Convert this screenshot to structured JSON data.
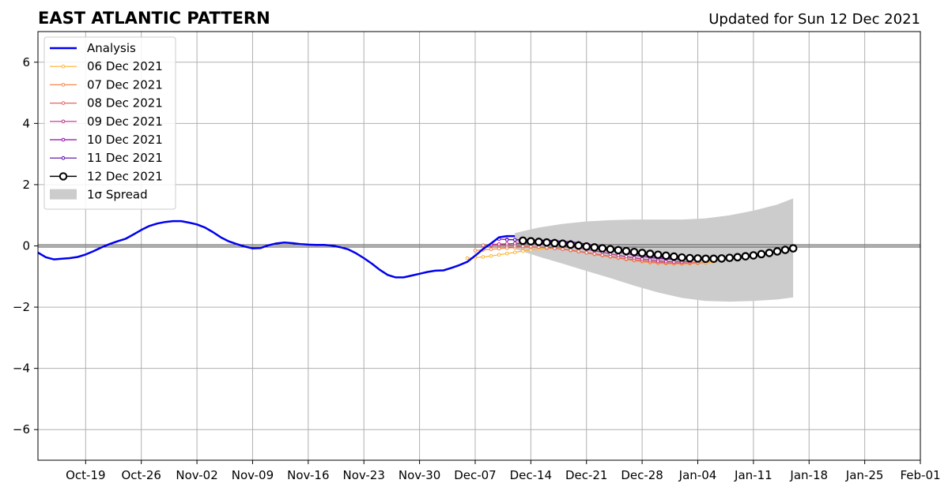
{
  "chart_data": {
    "type": "line",
    "title": "EAST ATLANTIC PATTERN",
    "subtitle": "Updated for Sun 12 Dec 2021",
    "xlabel": "",
    "ylabel": "",
    "x_range": [
      "2021-10-13",
      "2022-02-01"
    ],
    "ylim": [
      -7,
      7
    ],
    "yticks": [
      -6,
      -4,
      -2,
      0,
      2,
      4,
      6
    ],
    "ytick_labels": [
      "−6",
      "−4",
      "−2",
      "0",
      "2",
      "4",
      "6"
    ],
    "xticks": [
      "2021-10-19",
      "2021-10-26",
      "2021-11-02",
      "2021-11-09",
      "2021-11-16",
      "2021-11-23",
      "2021-11-30",
      "2021-12-07",
      "2021-12-14",
      "2021-12-21",
      "2021-12-28",
      "2022-01-04",
      "2022-01-11",
      "2022-01-18",
      "2022-01-25",
      "2022-02-01"
    ],
    "xtick_labels": [
      "Oct-19",
      "Oct-26",
      "Nov-02",
      "Nov-09",
      "Nov-16",
      "Nov-23",
      "Nov-30",
      "Dec-07",
      "Dec-14",
      "Dec-21",
      "Dec-28",
      "Jan-04",
      "Jan-11",
      "Jan-18",
      "Jan-25",
      "Feb-01"
    ],
    "grid": true,
    "legend_position": "upper-left",
    "analysis": {
      "name": "Analysis",
      "color": "#0000ee",
      "x": [
        "2021-10-13",
        "2021-10-14",
        "2021-10-15",
        "2021-10-16",
        "2021-10-17",
        "2021-10-18",
        "2021-10-19",
        "2021-10-20",
        "2021-10-21",
        "2021-10-22",
        "2021-10-23",
        "2021-10-24",
        "2021-10-25",
        "2021-10-26",
        "2021-10-27",
        "2021-10-28",
        "2021-10-29",
        "2021-10-30",
        "2021-10-31",
        "2021-11-01",
        "2021-11-02",
        "2021-11-03",
        "2021-11-04",
        "2021-11-05",
        "2021-11-06",
        "2021-11-07",
        "2021-11-08",
        "2021-11-09",
        "2021-11-10",
        "2021-11-11",
        "2021-11-12",
        "2021-11-13",
        "2021-11-14",
        "2021-11-15",
        "2021-11-16",
        "2021-11-17",
        "2021-11-18",
        "2021-11-19",
        "2021-11-20",
        "2021-11-21",
        "2021-11-22",
        "2021-11-23",
        "2021-11-24",
        "2021-11-25",
        "2021-11-26",
        "2021-11-27",
        "2021-11-28",
        "2021-11-29",
        "2021-11-30",
        "2021-12-01",
        "2021-12-02",
        "2021-12-03",
        "2021-12-04",
        "2021-12-05",
        "2021-12-06",
        "2021-12-07",
        "2021-12-08",
        "2021-12-09",
        "2021-12-10",
        "2021-12-11",
        "2021-12-12"
      ],
      "y": [
        -0.22,
        -0.37,
        -0.44,
        -0.42,
        -0.4,
        -0.36,
        -0.28,
        -0.17,
        -0.05,
        0.06,
        0.15,
        0.23,
        0.37,
        0.52,
        0.65,
        0.73,
        0.78,
        0.81,
        0.81,
        0.76,
        0.7,
        0.6,
        0.45,
        0.28,
        0.15,
        0.06,
        -0.02,
        -0.08,
        -0.07,
        0.02,
        0.08,
        0.11,
        0.09,
        0.06,
        0.04,
        0.03,
        0.03,
        0.01,
        -0.04,
        -0.11,
        -0.24,
        -0.4,
        -0.58,
        -0.78,
        -0.95,
        -1.03,
        -1.03,
        -0.97,
        -0.91,
        -0.85,
        -0.81,
        -0.8,
        -0.72,
        -0.63,
        -0.52,
        -0.32,
        -0.1,
        0.08,
        0.28,
        0.32,
        0.32
      ]
    },
    "spread": {
      "name": "1σ Spread",
      "color": "#cccccc",
      "x": [
        "2021-12-12",
        "2021-12-15",
        "2021-12-18",
        "2021-12-21",
        "2021-12-24",
        "2021-12-27",
        "2021-12-30",
        "2022-01-02",
        "2022-01-05",
        "2022-01-08",
        "2022-01-11",
        "2022-01-14",
        "2022-01-16"
      ],
      "upper": [
        0.42,
        0.6,
        0.72,
        0.8,
        0.84,
        0.86,
        0.86,
        0.86,
        0.9,
        1.0,
        1.15,
        1.35,
        1.55
      ],
      "lower": [
        -0.1,
        -0.35,
        -0.58,
        -0.82,
        -1.05,
        -1.3,
        -1.52,
        -1.7,
        -1.8,
        -1.82,
        -1.8,
        -1.75,
        -1.68
      ]
    },
    "series": [
      {
        "name": "06 Dec 2021",
        "color": "#fdb42f",
        "x": [
          "2021-12-06",
          "2021-12-07",
          "2021-12-08",
          "2021-12-09",
          "2021-12-10",
          "2021-12-11",
          "2021-12-12",
          "2021-12-13",
          "2021-12-14",
          "2021-12-15",
          "2021-12-16",
          "2021-12-17",
          "2021-12-18",
          "2021-12-19",
          "2021-12-20",
          "2021-12-21",
          "2021-12-22",
          "2021-12-23",
          "2021-12-24",
          "2021-12-25",
          "2021-12-26",
          "2021-12-27",
          "2021-12-28",
          "2021-12-29",
          "2021-12-30",
          "2021-12-31",
          "2022-01-01",
          "2022-01-02",
          "2022-01-03",
          "2022-01-04",
          "2022-01-05",
          "2022-01-06"
        ],
        "y": [
          -0.4,
          -0.38,
          -0.36,
          -0.33,
          -0.29,
          -0.25,
          -0.21,
          -0.17,
          -0.13,
          -0.1,
          -0.08,
          -0.08,
          -0.1,
          -0.13,
          -0.17,
          -0.21,
          -0.26,
          -0.3,
          -0.35,
          -0.4,
          -0.44,
          -0.48,
          -0.52,
          -0.55,
          -0.57,
          -0.58,
          -0.59,
          -0.59,
          -0.58,
          -0.57,
          -0.55,
          -0.53
        ]
      },
      {
        "name": "07 Dec 2021",
        "color": "#f48849",
        "x": [
          "2021-12-07",
          "2021-12-08",
          "2021-12-09",
          "2021-12-10",
          "2021-12-11",
          "2021-12-12",
          "2021-12-13",
          "2021-12-14",
          "2021-12-15",
          "2021-12-16",
          "2021-12-17",
          "2021-12-18",
          "2021-12-19",
          "2021-12-20",
          "2021-12-21",
          "2021-12-22",
          "2021-12-23",
          "2021-12-24",
          "2021-12-25",
          "2021-12-26",
          "2021-12-27",
          "2021-12-28",
          "2021-12-29",
          "2021-12-30",
          "2021-12-31",
          "2022-01-01",
          "2022-01-02",
          "2022-01-03",
          "2022-01-04",
          "2022-01-05"
        ],
        "y": [
          -0.15,
          -0.13,
          -0.11,
          -0.09,
          -0.07,
          -0.06,
          -0.05,
          -0.05,
          -0.05,
          -0.06,
          -0.08,
          -0.11,
          -0.15,
          -0.19,
          -0.23,
          -0.28,
          -0.32,
          -0.36,
          -0.4,
          -0.44,
          -0.48,
          -0.51,
          -0.54,
          -0.56,
          -0.57,
          -0.58,
          -0.58,
          -0.57,
          -0.56,
          -0.54
        ]
      },
      {
        "name": "08 Dec 2021",
        "color": "#e16462",
        "x": [
          "2021-12-08",
          "2021-12-09",
          "2021-12-10",
          "2021-12-11",
          "2021-12-12",
          "2021-12-13",
          "2021-12-14",
          "2021-12-15",
          "2021-12-16",
          "2021-12-17",
          "2021-12-18",
          "2021-12-19",
          "2021-12-20",
          "2021-12-21",
          "2021-12-22",
          "2021-12-23",
          "2021-12-24",
          "2021-12-25",
          "2021-12-26",
          "2021-12-27",
          "2021-12-28",
          "2021-12-29",
          "2021-12-30",
          "2021-12-31",
          "2022-01-01",
          "2022-01-02",
          "2022-01-03",
          "2022-01-04"
        ],
        "y": [
          0.02,
          0.02,
          0.02,
          0.01,
          0.0,
          -0.01,
          -0.02,
          -0.04,
          -0.06,
          -0.08,
          -0.11,
          -0.14,
          -0.18,
          -0.22,
          -0.26,
          -0.3,
          -0.34,
          -0.38,
          -0.42,
          -0.45,
          -0.48,
          -0.51,
          -0.53,
          -0.55,
          -0.56,
          -0.56,
          -0.55,
          -0.54
        ]
      },
      {
        "name": "09 Dec 2021",
        "color": "#b83289",
        "x": [
          "2021-12-09",
          "2021-12-10",
          "2021-12-11",
          "2021-12-12",
          "2021-12-13",
          "2021-12-14",
          "2021-12-15",
          "2021-12-16",
          "2021-12-17",
          "2021-12-18",
          "2021-12-19",
          "2021-12-20",
          "2021-12-21",
          "2021-12-22",
          "2021-12-23",
          "2021-12-24",
          "2021-12-25",
          "2021-12-26",
          "2021-12-27",
          "2021-12-28",
          "2021-12-29",
          "2021-12-30",
          "2021-12-31",
          "2022-01-01",
          "2022-01-02",
          "2022-01-03"
        ],
        "y": [
          0.05,
          0.06,
          0.07,
          0.08,
          0.08,
          0.08,
          0.07,
          0.06,
          0.04,
          0.02,
          -0.02,
          -0.06,
          -0.11,
          -0.16,
          -0.21,
          -0.26,
          -0.31,
          -0.35,
          -0.39,
          -0.43,
          -0.46,
          -0.49,
          -0.51,
          -0.52,
          -0.52,
          -0.51
        ]
      },
      {
        "name": "10 Dec 2021",
        "color": "#8b0aa5",
        "x": [
          "2021-12-10",
          "2021-12-11",
          "2021-12-12",
          "2021-12-13",
          "2021-12-14",
          "2021-12-15",
          "2021-12-16",
          "2021-12-17",
          "2021-12-18",
          "2021-12-19",
          "2021-12-20",
          "2021-12-21",
          "2021-12-22",
          "2021-12-23",
          "2021-12-24",
          "2021-12-25",
          "2021-12-26",
          "2021-12-27",
          "2021-12-28",
          "2021-12-29",
          "2021-12-30",
          "2021-12-31",
          "2022-01-01",
          "2022-01-02"
        ],
        "y": [
          0.22,
          0.21,
          0.2,
          0.19,
          0.18,
          0.17,
          0.16,
          0.14,
          0.12,
          0.09,
          0.05,
          0.0,
          -0.05,
          -0.1,
          -0.15,
          -0.2,
          -0.25,
          -0.3,
          -0.34,
          -0.38,
          -0.41,
          -0.43,
          -0.44,
          -0.45
        ]
      },
      {
        "name": "11 Dec 2021",
        "color": "#5302a3",
        "x": [
          "2021-12-11",
          "2021-12-12",
          "2021-12-13",
          "2021-12-14",
          "2021-12-15",
          "2021-12-16",
          "2021-12-17",
          "2021-12-18",
          "2021-12-19",
          "2021-12-20",
          "2021-12-21",
          "2021-12-22",
          "2021-12-23",
          "2021-12-24",
          "2021-12-25",
          "2021-12-26",
          "2021-12-27",
          "2021-12-28",
          "2021-12-29",
          "2021-12-30",
          "2021-12-31",
          "2022-01-01"
        ],
        "y": [
          0.2,
          0.2,
          0.2,
          0.2,
          0.19,
          0.18,
          0.17,
          0.15,
          0.13,
          0.1,
          0.06,
          0.02,
          -0.03,
          -0.08,
          -0.13,
          -0.18,
          -0.23,
          -0.28,
          -0.32,
          -0.36,
          -0.39,
          -0.42
        ]
      },
      {
        "name": "12 Dec 2021",
        "color": "#000000",
        "x": [
          "2021-12-13",
          "2021-12-14",
          "2021-12-15",
          "2021-12-16",
          "2021-12-17",
          "2021-12-18",
          "2021-12-19",
          "2021-12-20",
          "2021-12-21",
          "2021-12-22",
          "2021-12-23",
          "2021-12-24",
          "2021-12-25",
          "2021-12-26",
          "2021-12-27",
          "2021-12-28",
          "2021-12-29",
          "2021-12-30",
          "2021-12-31",
          "2022-01-01",
          "2022-01-02",
          "2022-01-03",
          "2022-01-04",
          "2022-01-05",
          "2022-01-06",
          "2022-01-07",
          "2022-01-08",
          "2022-01-09",
          "2022-01-10",
          "2022-01-11",
          "2022-01-12",
          "2022-01-13",
          "2022-01-14",
          "2022-01-15",
          "2022-01-16"
        ],
        "y": [
          0.17,
          0.15,
          0.13,
          0.11,
          0.09,
          0.07,
          0.04,
          0.01,
          -0.02,
          -0.05,
          -0.08,
          -0.11,
          -0.14,
          -0.17,
          -0.2,
          -0.23,
          -0.26,
          -0.29,
          -0.32,
          -0.35,
          -0.38,
          -0.4,
          -0.41,
          -0.42,
          -0.42,
          -0.41,
          -0.39,
          -0.37,
          -0.34,
          -0.31,
          -0.27,
          -0.23,
          -0.18,
          -0.13,
          -0.08
        ]
      }
    ],
    "legend_entries": [
      "Analysis",
      "06 Dec 2021",
      "07 Dec 2021",
      "08 Dec 2021",
      "09 Dec 2021",
      "10 Dec 2021",
      "11 Dec 2021",
      "12 Dec 2021",
      "1σ Spread"
    ]
  }
}
